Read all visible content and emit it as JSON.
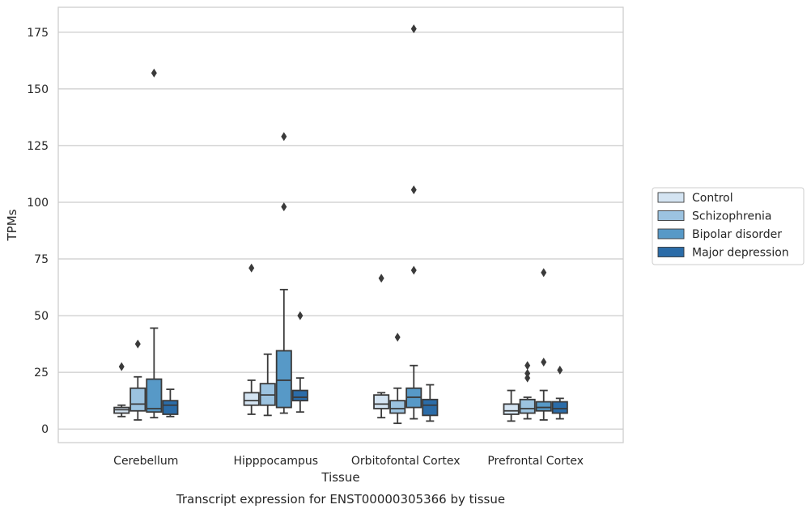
{
  "chart_data": {
    "type": "box",
    "xlabel": "Tissue",
    "ylabel": "TPMs",
    "caption": "Transcript expression for ENST00000305366 by tissue",
    "categories": [
      "Cerebellum",
      "Hipppocampus",
      "Orbitofontal Cortex",
      "Prefrontal Cortex"
    ],
    "yticks": [
      "0",
      "25",
      "50",
      "75",
      "100",
      "125",
      "150",
      "175"
    ],
    "ylim": [
      -6,
      186
    ],
    "grid": "horizontal",
    "legend_position": "right",
    "series": [
      {
        "name": "Control",
        "color": "#d4e4f2",
        "boxes": [
          {
            "whislo": 5.5,
            "q1": 7,
            "med": 8.5,
            "q3": 9.5,
            "whishi": 10.5,
            "fliers": [
              27.5
            ]
          },
          {
            "whislo": 6.5,
            "q1": 10.5,
            "med": 12.5,
            "q3": 16,
            "whishi": 21.5,
            "fliers": [
              71
            ]
          },
          {
            "whislo": 5,
            "q1": 9,
            "med": 11,
            "q3": 15,
            "whishi": 16,
            "fliers": [
              66.5
            ]
          },
          {
            "whislo": 3.5,
            "q1": 6.5,
            "med": 8,
            "q3": 11,
            "whishi": 17,
            "fliers": []
          }
        ]
      },
      {
        "name": "Schizophrenia",
        "color": "#9cc3e0",
        "boxes": [
          {
            "whislo": 4,
            "q1": 8,
            "med": 11,
            "q3": 18,
            "whishi": 23,
            "fliers": [
              37.5
            ]
          },
          {
            "whislo": 6,
            "q1": 10.5,
            "med": 15,
            "q3": 20,
            "whishi": 33,
            "fliers": []
          },
          {
            "whislo": 2.5,
            "q1": 7,
            "med": 9,
            "q3": 12.5,
            "whishi": 18,
            "fliers": [
              40.5
            ]
          },
          {
            "whislo": 4.5,
            "q1": 7,
            "med": 9,
            "q3": 13,
            "whishi": 14,
            "fliers": [
              22.5,
              24.5,
              28
            ]
          }
        ]
      },
      {
        "name": "Bipolar disorder",
        "color": "#5799c7",
        "boxes": [
          {
            "whislo": 5,
            "q1": 7.5,
            "med": 9,
            "q3": 22,
            "whishi": 44.5,
            "fliers": [
              157
            ]
          },
          {
            "whislo": 7,
            "q1": 9.5,
            "med": 21.5,
            "q3": 34.5,
            "whishi": 61.5,
            "fliers": [
              98,
              129
            ]
          },
          {
            "whislo": 4.5,
            "q1": 9.5,
            "med": 14,
            "q3": 18,
            "whishi": 28,
            "fliers": [
              70,
              105.5,
              176.5
            ]
          },
          {
            "whislo": 4,
            "q1": 8,
            "med": 9.5,
            "q3": 12,
            "whishi": 17,
            "fliers": [
              29.5,
              69
            ]
          }
        ]
      },
      {
        "name": "Major depression",
        "color": "#2b6ca8",
        "boxes": [
          {
            "whislo": 5.5,
            "q1": 6.5,
            "med": 10.5,
            "q3": 12.5,
            "whishi": 17.5,
            "fliers": []
          },
          {
            "whislo": 7.5,
            "q1": 12.5,
            "med": 14,
            "q3": 17,
            "whishi": 22.5,
            "fliers": [
              50
            ]
          },
          {
            "whislo": 3.5,
            "q1": 6,
            "med": 10.5,
            "q3": 13,
            "whishi": 19.5,
            "fliers": []
          },
          {
            "whislo": 4.5,
            "q1": 7,
            "med": 9,
            "q3": 12,
            "whishi": 13.5,
            "fliers": [
              26
            ]
          }
        ]
      }
    ]
  }
}
